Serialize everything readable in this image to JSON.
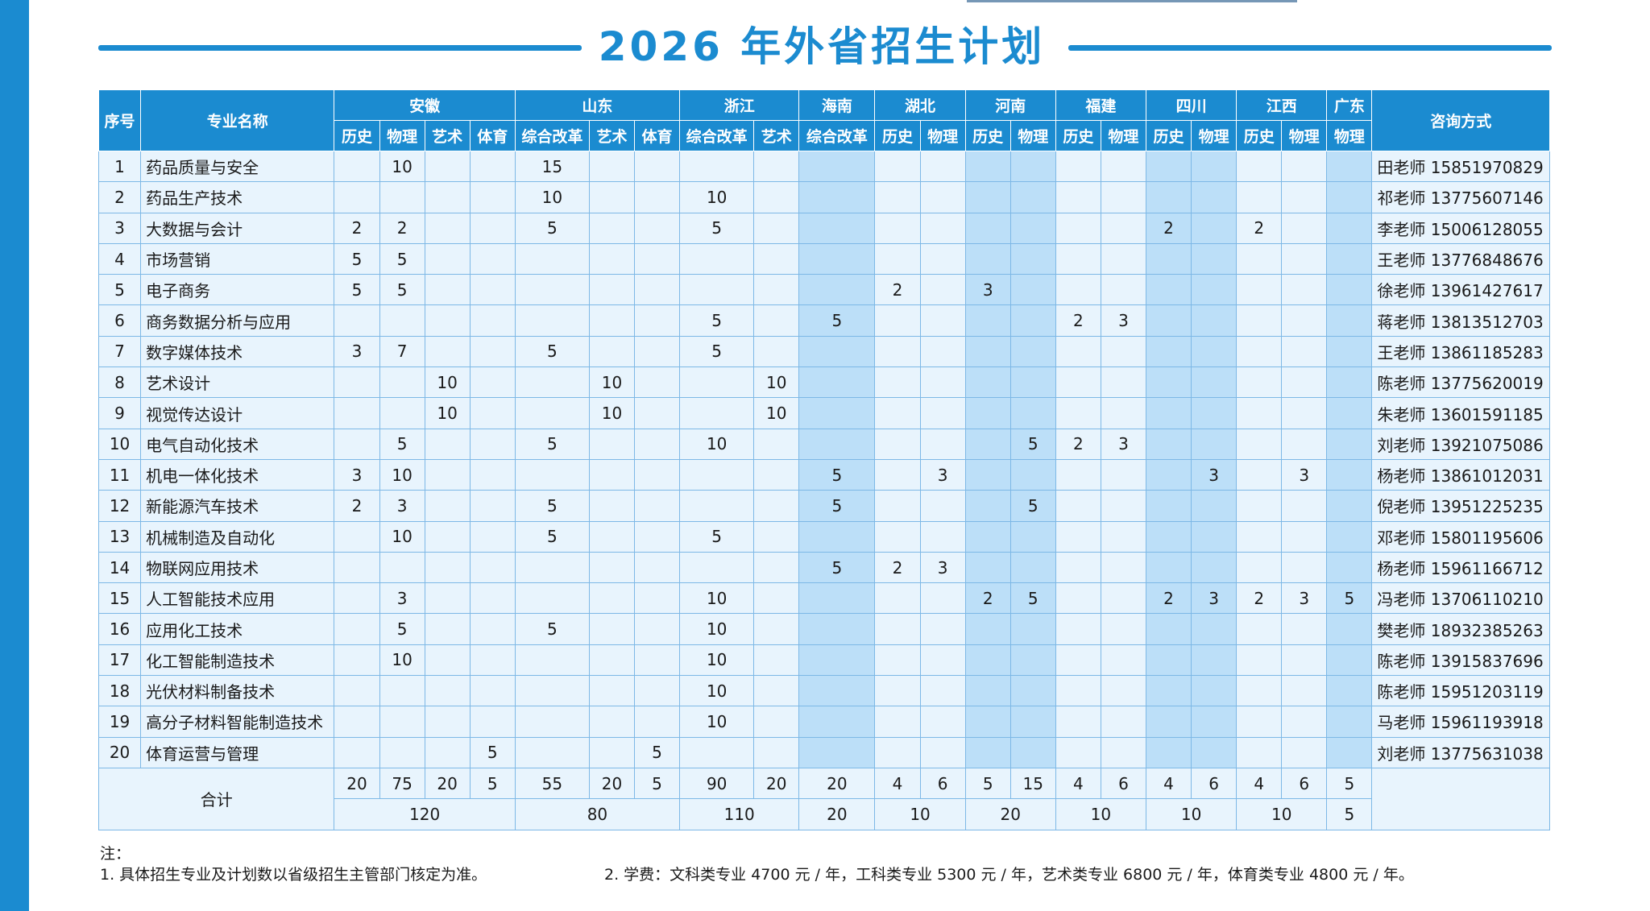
{
  "title": "2026 年外省招生计划",
  "colors": {
    "accent": "#1b8bd0",
    "cell_light": "#e8f4fd",
    "cell_shade": "#bcdff8"
  },
  "header": {
    "seq": "序号",
    "major": "专业名称",
    "contact": "咨询方式",
    "provinces": [
      "安徽",
      "山东",
      "浙江",
      "海南",
      "湖北",
      "河南",
      "福建",
      "四川",
      "江西",
      "广东"
    ],
    "subjects": [
      "历史",
      "物理",
      "艺术",
      "体育",
      "综合改革",
      "艺术",
      "体育",
      "综合改革",
      "艺术",
      "综合改革",
      "历史",
      "物理",
      "历史",
      "物理",
      "历史",
      "物理",
      "历史",
      "物理",
      "历史",
      "物理",
      "物理"
    ]
  },
  "rows": [
    {
      "no": "1",
      "name": "药品质量与安全",
      "vals": [
        "",
        "10",
        "",
        "",
        "15",
        "",
        "",
        "",
        "",
        "",
        "",
        "",
        "",
        "",
        "",
        "",
        "",
        "",
        "",
        "",
        ""
      ],
      "contact": "田老师 15851970829"
    },
    {
      "no": "2",
      "name": "药品生产技术",
      "vals": [
        "",
        "",
        "",
        "",
        "10",
        "",
        "",
        "10",
        "",
        "",
        "",
        "",
        "",
        "",
        "",
        "",
        "",
        "",
        "",
        "",
        ""
      ],
      "contact": "祁老师 13775607146"
    },
    {
      "no": "3",
      "name": "大数据与会计",
      "vals": [
        "2",
        "2",
        "",
        "",
        "5",
        "",
        "",
        "5",
        "",
        "",
        "",
        "",
        "",
        "",
        "",
        "",
        "2",
        "",
        "2",
        "",
        ""
      ],
      "contact": "李老师 15006128055"
    },
    {
      "no": "4",
      "name": "市场营销",
      "vals": [
        "5",
        "5",
        "",
        "",
        "",
        "",
        "",
        "",
        "",
        "",
        "",
        "",
        "",
        "",
        "",
        "",
        "",
        "",
        "",
        "",
        ""
      ],
      "contact": "王老师 13776848676"
    },
    {
      "no": "5",
      "name": "电子商务",
      "vals": [
        "5",
        "5",
        "",
        "",
        "",
        "",
        "",
        "",
        "",
        "",
        "2",
        "",
        "3",
        "",
        "",
        "",
        "",
        "",
        "",
        "",
        ""
      ],
      "contact": "徐老师 13961427617"
    },
    {
      "no": "6",
      "name": "商务数据分析与应用",
      "vals": [
        "",
        "",
        "",
        "",
        "",
        "",
        "",
        "5",
        "",
        "5",
        "",
        "",
        "",
        "",
        "2",
        "3",
        "",
        "",
        "",
        "",
        ""
      ],
      "contact": "蒋老师 13813512703"
    },
    {
      "no": "7",
      "name": "数字媒体技术",
      "vals": [
        "3",
        "7",
        "",
        "",
        "5",
        "",
        "",
        "5",
        "",
        "",
        "",
        "",
        "",
        "",
        "",
        "",
        "",
        "",
        "",
        "",
        ""
      ],
      "contact": "王老师 13861185283"
    },
    {
      "no": "8",
      "name": "艺术设计",
      "vals": [
        "",
        "",
        "10",
        "",
        "",
        "10",
        "",
        "",
        "10",
        "",
        "",
        "",
        "",
        "",
        "",
        "",
        "",
        "",
        "",
        "",
        ""
      ],
      "contact": "陈老师 13775620019"
    },
    {
      "no": "9",
      "name": "视觉传达设计",
      "vals": [
        "",
        "",
        "10",
        "",
        "",
        "10",
        "",
        "",
        "10",
        "",
        "",
        "",
        "",
        "",
        "",
        "",
        "",
        "",
        "",
        "",
        ""
      ],
      "contact": "朱老师 13601591185"
    },
    {
      "no": "10",
      "name": "电气自动化技术",
      "vals": [
        "",
        "5",
        "",
        "",
        "5",
        "",
        "",
        "10",
        "",
        "",
        "",
        "",
        "",
        "5",
        "2",
        "3",
        "",
        "",
        "",
        "",
        ""
      ],
      "contact": "刘老师 13921075086"
    },
    {
      "no": "11",
      "name": "机电一体化技术",
      "vals": [
        "3",
        "10",
        "",
        "",
        "",
        "",
        "",
        "",
        "",
        "5",
        "",
        "3",
        "",
        "",
        "",
        "",
        "",
        "3",
        "",
        "3",
        ""
      ],
      "contact": "杨老师 13861012031"
    },
    {
      "no": "12",
      "name": "新能源汽车技术",
      "vals": [
        "2",
        "3",
        "",
        "",
        "5",
        "",
        "",
        "",
        "",
        "5",
        "",
        "",
        "",
        "5",
        "",
        "",
        "",
        "",
        "",
        "",
        ""
      ],
      "contact": "倪老师 13951225235"
    },
    {
      "no": "13",
      "name": "机械制造及自动化",
      "vals": [
        "",
        "10",
        "",
        "",
        "5",
        "",
        "",
        "5",
        "",
        "",
        "",
        "",
        "",
        "",
        "",
        "",
        "",
        "",
        "",
        "",
        ""
      ],
      "contact": "邓老师 15801195606"
    },
    {
      "no": "14",
      "name": "物联网应用技术",
      "vals": [
        "",
        "",
        "",
        "",
        "",
        "",
        "",
        "",
        "",
        "5",
        "2",
        "3",
        "",
        "",
        "",
        "",
        "",
        "",
        "",
        "",
        ""
      ],
      "contact": "杨老师 15961166712"
    },
    {
      "no": "15",
      "name": "人工智能技术应用",
      "vals": [
        "",
        "3",
        "",
        "",
        "",
        "",
        "",
        "10",
        "",
        "",
        "",
        "",
        "2",
        "5",
        "",
        "",
        "2",
        "3",
        "2",
        "3",
        "5"
      ],
      "contact": "冯老师 13706110210"
    },
    {
      "no": "16",
      "name": "应用化工技术",
      "vals": [
        "",
        "5",
        "",
        "",
        "5",
        "",
        "",
        "10",
        "",
        "",
        "",
        "",
        "",
        "",
        "",
        "",
        "",
        "",
        "",
        "",
        ""
      ],
      "contact": "樊老师 18932385263"
    },
    {
      "no": "17",
      "name": "化工智能制造技术",
      "vals": [
        "",
        "10",
        "",
        "",
        "",
        "",
        "",
        "10",
        "",
        "",
        "",
        "",
        "",
        "",
        "",
        "",
        "",
        "",
        "",
        "",
        ""
      ],
      "contact": "陈老师 13915837696"
    },
    {
      "no": "18",
      "name": "光伏材料制备技术",
      "vals": [
        "",
        "",
        "",
        "",
        "",
        "",
        "",
        "10",
        "",
        "",
        "",
        "",
        "",
        "",
        "",
        "",
        "",
        "",
        "",
        "",
        ""
      ],
      "contact": "陈老师 15951203119"
    },
    {
      "no": "19",
      "name": "高分子材料智能制造技术",
      "vals": [
        "",
        "",
        "",
        "",
        "",
        "",
        "",
        "10",
        "",
        "",
        "",
        "",
        "",
        "",
        "",
        "",
        "",
        "",
        "",
        "",
        ""
      ],
      "contact": "马老师 15961193918"
    },
    {
      "no": "20",
      "name": "体育运营与管理",
      "vals": [
        "",
        "",
        "",
        "5",
        "",
        "",
        "5",
        "",
        "",
        "",
        "",
        "",
        "",
        "",
        "",
        "",
        "",
        "",
        "",
        "",
        ""
      ],
      "contact": "刘老师 13775631038"
    }
  ],
  "totals": {
    "label": "合计",
    "by_subject": [
      "20",
      "75",
      "20",
      "5",
      "55",
      "20",
      "5",
      "90",
      "20",
      "20",
      "4",
      "6",
      "5",
      "15",
      "4",
      "6",
      "4",
      "6",
      "4",
      "6",
      "5"
    ],
    "by_province": [
      "120",
      "80",
      "110",
      "20",
      "10",
      "20",
      "10",
      "10",
      "10",
      "5"
    ]
  },
  "notes": {
    "heading": "注：",
    "note1": "1. 具体招生专业及计划数以省级招生主管部门核定为准。",
    "note2": "2. 学费：文科类专业 4700 元 / 年，工科类专业 5300 元 / 年，艺术类专业 6800 元 / 年，体育类专业 4800 元 / 年。"
  }
}
